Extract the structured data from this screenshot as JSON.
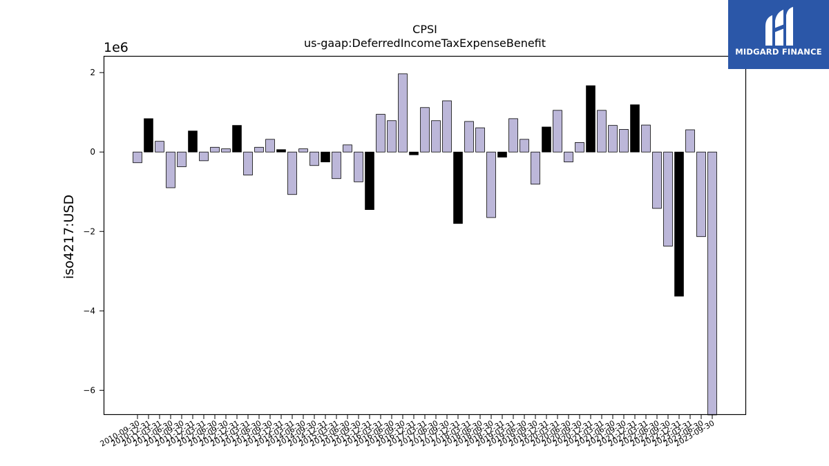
{
  "chart_data": {
    "type": "bar",
    "title": "CPSI",
    "subtitle": "us-gaap:DeferredIncomeTaxExpenseBenefit",
    "ylabel": "iso4217:USD",
    "xlabel": "",
    "y_scale_label": "1e6",
    "y_ticks": [
      -6,
      -4,
      -2,
      0,
      2
    ],
    "ylim": [
      -6.62,
      2.42
    ],
    "grid": false,
    "legend": "none",
    "colors": {
      "annual": "#000000",
      "quarterly": "#bcb7d9",
      "edge": "#000000"
    },
    "categories": [
      "2010-09-30",
      "2010-12-31",
      "2011-03-31",
      "2011-06-30",
      "2011-09-30",
      "2011-12-31",
      "2012-03-31",
      "2012-06-30",
      "2012-09-30",
      "2012-12-31",
      "2013-03-31",
      "2013-06-30",
      "2013-09-30",
      "2013-12-31",
      "2014-03-31",
      "2014-06-30",
      "2014-09-30",
      "2014-12-31",
      "2015-03-31",
      "2015-06-30",
      "2015-09-30",
      "2015-12-31",
      "2016-03-31",
      "2016-06-30",
      "2016-09-30",
      "2016-12-31",
      "2017-03-31",
      "2017-06-30",
      "2017-09-30",
      "2017-12-31",
      "2018-03-31",
      "2018-06-30",
      "2018-09-30",
      "2018-12-31",
      "2019-03-31",
      "2019-06-30",
      "2019-09-30",
      "2019-12-31",
      "2020-03-31",
      "2020-06-30",
      "2020-09-30",
      "2020-12-31",
      "2021-03-31",
      "2021-06-30",
      "2021-09-30",
      "2021-12-31",
      "2022-03-31",
      "2022-06-30",
      "2022-09-30",
      "2022-12-31",
      "2023-03-31",
      "2023-06-30",
      "2023-09-30"
    ],
    "values": [
      -0.27,
      0.84,
      0.27,
      -0.9,
      -0.37,
      0.53,
      -0.22,
      0.12,
      0.08,
      0.67,
      -0.58,
      0.12,
      0.32,
      0.06,
      -1.07,
      0.08,
      -0.34,
      -0.25,
      -0.67,
      0.18,
      -0.75,
      -1.45,
      0.95,
      0.79,
      1.97,
      -0.07,
      1.12,
      0.79,
      1.29,
      -1.8,
      0.77,
      0.61,
      -1.65,
      -0.13,
      0.84,
      0.32,
      -0.81,
      0.63,
      1.05,
      -0.25,
      0.24,
      1.67,
      1.05,
      0.67,
      0.57,
      1.19,
      0.68,
      -1.42,
      -2.37,
      -3.63,
      0.56,
      -2.13,
      -6.62
    ],
    "period": [
      "Q",
      "FY",
      "Q",
      "Q",
      "Q",
      "FY",
      "Q",
      "Q",
      "Q",
      "FY",
      "Q",
      "Q",
      "Q",
      "FY",
      "Q",
      "Q",
      "Q",
      "FY",
      "Q",
      "Q",
      "Q",
      "FY",
      "Q",
      "Q",
      "Q",
      "FY",
      "Q",
      "Q",
      "Q",
      "FY",
      "Q",
      "Q",
      "Q",
      "FY",
      "Q",
      "Q",
      "Q",
      "FY",
      "Q",
      "Q",
      "Q",
      "FY",
      "Q",
      "Q",
      "Q",
      "FY",
      "Q",
      "Q",
      "Q",
      "FY",
      "Q",
      "Q",
      "Q"
    ]
  },
  "logo": {
    "text": "MIDGARD FINANCE",
    "color": "#2b57a8"
  }
}
